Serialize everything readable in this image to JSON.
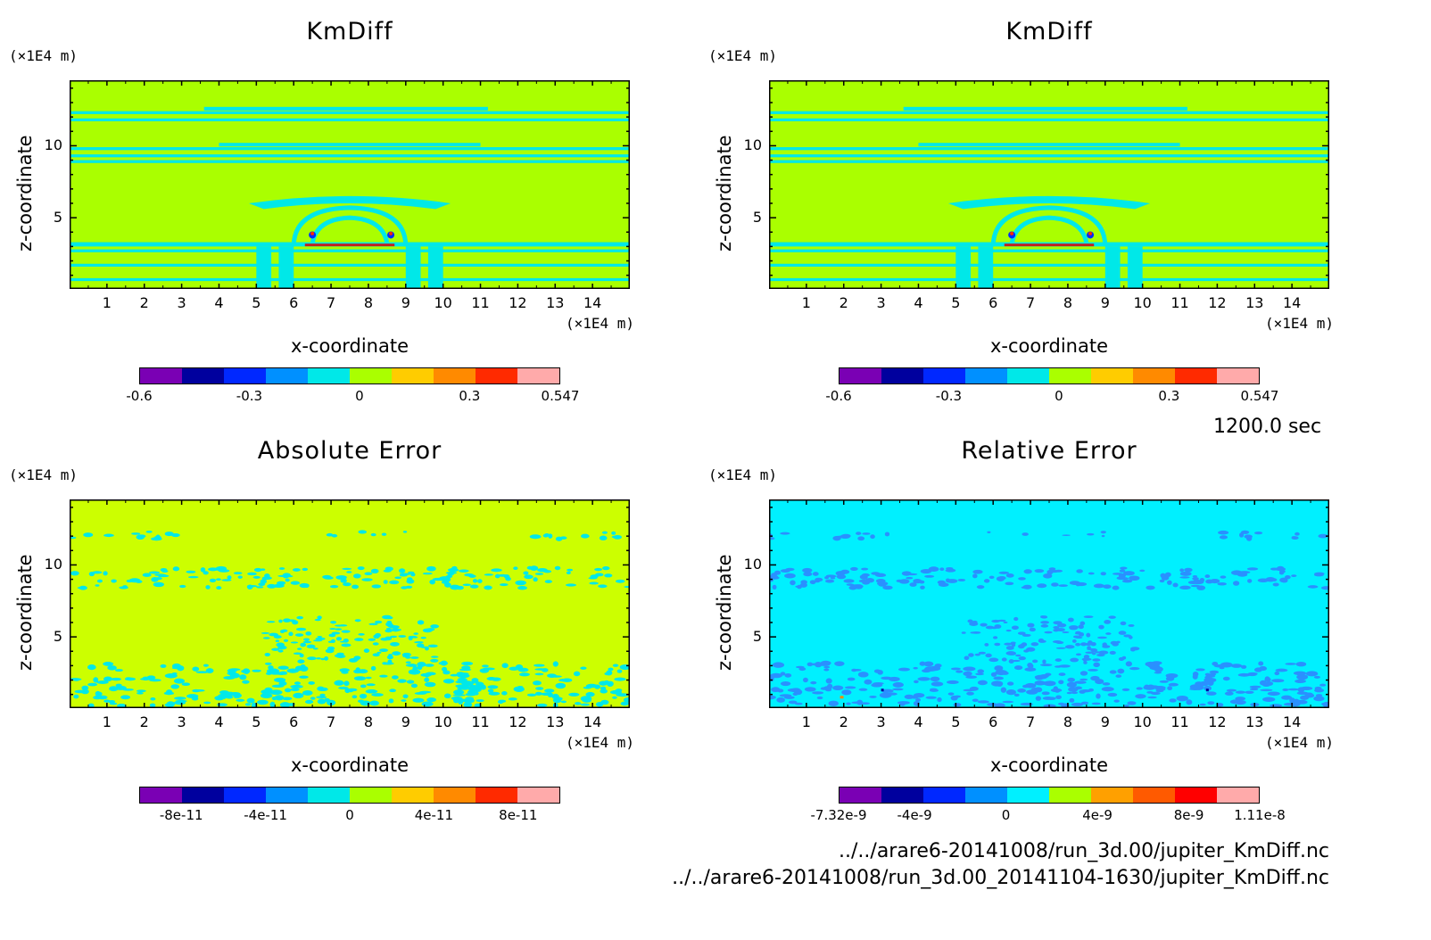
{
  "chart_data": [
    {
      "type": "heatmap",
      "title": "KmDiff",
      "xlabel": "x-coordinate",
      "ylabel": "z-coordinate",
      "x_unit": "(×1E4 m)",
      "y_unit": "(×1E4 m)",
      "xlim": [
        0,
        15
      ],
      "ylim": [
        0,
        15
      ],
      "x_ticks": [
        "1",
        "2",
        "3",
        "4",
        "5",
        "6",
        "7",
        "8",
        "9",
        "10",
        "11",
        "12",
        "13",
        "14"
      ],
      "y_ticks": [
        "5",
        "10"
      ],
      "colorbar_labels": [
        "-0.6",
        "-0.3",
        "0",
        "0.3",
        "0.547"
      ],
      "colorbar_range": [
        -0.6,
        0.547
      ],
      "dominant_value": "0.0 to 0.1"
    },
    {
      "type": "heatmap",
      "title": "KmDiff",
      "xlabel": "x-coordinate",
      "ylabel": "z-coordinate",
      "x_unit": "(×1E4 m)",
      "y_unit": "(×1E4 m)",
      "xlim": [
        0,
        15
      ],
      "ylim": [
        0,
        15
      ],
      "x_ticks": [
        "1",
        "2",
        "3",
        "4",
        "5",
        "6",
        "7",
        "8",
        "9",
        "10",
        "11",
        "12",
        "13",
        "14"
      ],
      "y_ticks": [
        "5",
        "10"
      ],
      "colorbar_labels": [
        "-0.6",
        "-0.3",
        "0",
        "0.3",
        "0.547"
      ],
      "colorbar_range": [
        -0.6,
        0.547
      ],
      "dominant_value": "0.0 to 0.1"
    },
    {
      "type": "heatmap",
      "title": "Absolute Error",
      "xlabel": "x-coordinate",
      "ylabel": "z-coordinate",
      "x_unit": "(×1E4 m)",
      "y_unit": "(×1E4 m)",
      "xlim": [
        0,
        15
      ],
      "ylim": [
        0,
        15
      ],
      "x_ticks": [
        "1",
        "2",
        "3",
        "4",
        "5",
        "6",
        "7",
        "8",
        "9",
        "10",
        "11",
        "12",
        "13",
        "14"
      ],
      "y_ticks": [
        "5",
        "10"
      ],
      "colorbar_labels": [
        "-8e-11",
        "-4e-11",
        "0",
        "4e-11",
        "8e-11"
      ],
      "colorbar_range": [
        -1e-10,
        1e-10
      ],
      "dominant_value": "0 to 2e-11"
    },
    {
      "type": "heatmap",
      "title": "Relative Error",
      "xlabel": "x-coordinate",
      "ylabel": "z-coordinate",
      "x_unit": "(×1E4 m)",
      "y_unit": "(×1E4 m)",
      "xlim": [
        0,
        15
      ],
      "ylim": [
        0,
        15
      ],
      "x_ticks": [
        "1",
        "2",
        "3",
        "4",
        "5",
        "6",
        "7",
        "8",
        "9",
        "10",
        "11",
        "12",
        "13",
        "14"
      ],
      "y_ticks": [
        "5",
        "10"
      ],
      "colorbar_labels": [
        "-7.32e-9",
        "-4e-9",
        "0",
        "4e-9",
        "8e-9",
        "1.11e-8"
      ],
      "colorbar_range": [
        -7.32e-09,
        1.11e-08
      ],
      "dominant_value": "-2e-9 to 0"
    }
  ],
  "colors": {
    "cmap_10": [
      "#7a00b4",
      "#00009e",
      "#0028ff",
      "#0090ff",
      "#00e8e8",
      "#aaff00",
      "#ffcc00",
      "#ff8a00",
      "#ff2a00",
      "#ffaaaa"
    ],
    "cmap_rel": [
      "#7a00b4",
      "#00009e",
      "#0028ff",
      "#0090ff",
      "#00f0ff",
      "#aaff00",
      "#ffa000",
      "#ff5a00",
      "#ff0000",
      "#ffaaaa"
    ]
  },
  "time_label": "1200.0 sec",
  "footer": {
    "line1": "../../arare6-20141008/run_3d.00/jupiter_KmDiff.nc",
    "line2": "../../arare6-20141008/run_3d.00_20141104-1630/jupiter_KmDiff.nc"
  }
}
